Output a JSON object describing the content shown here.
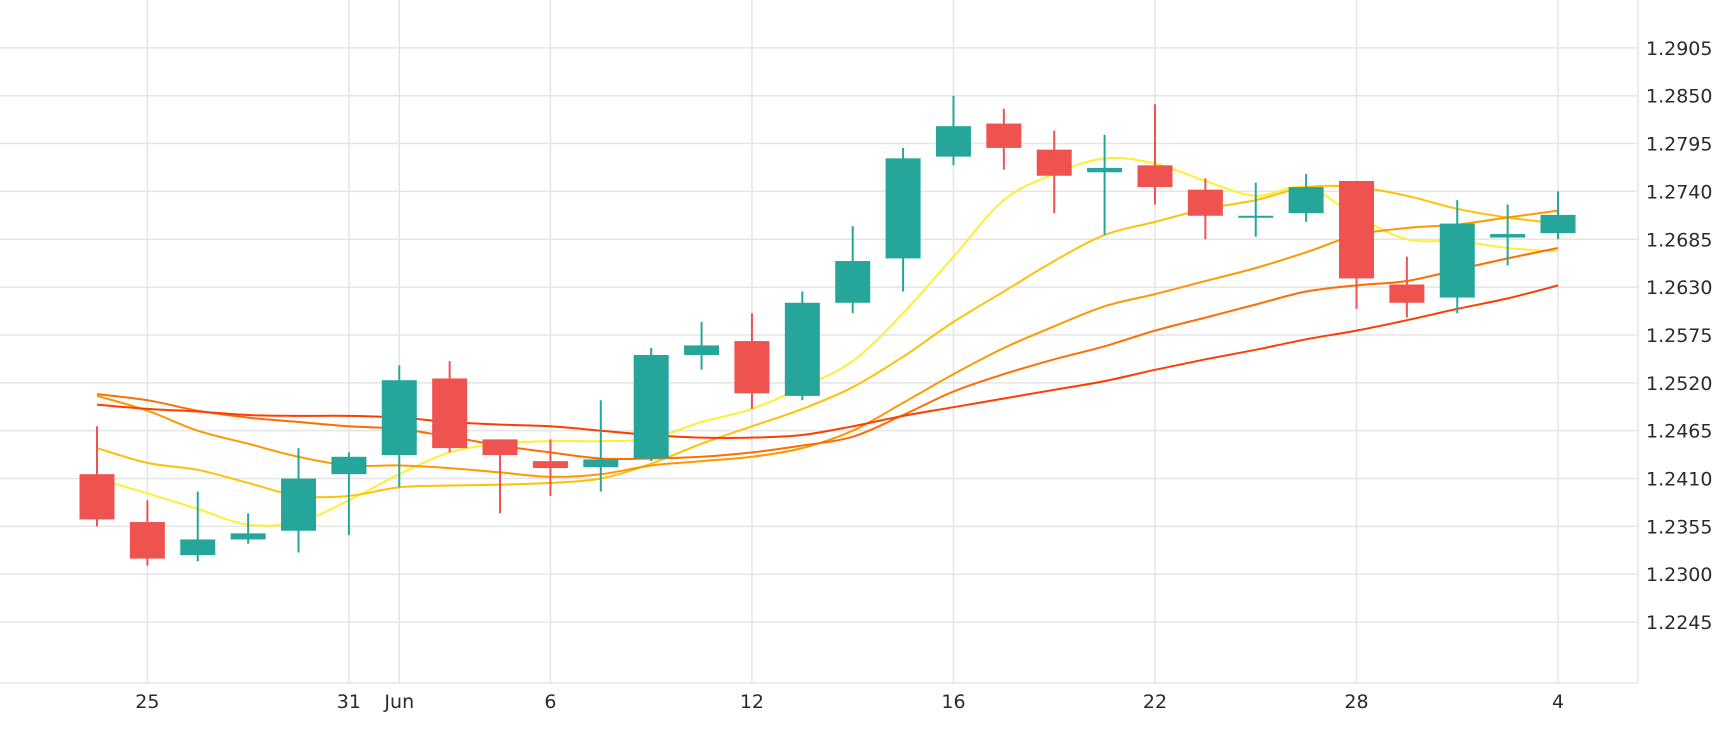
{
  "chart_data": {
    "type": "candlestick",
    "y_axis": {
      "position": "right",
      "ticks": [
        1.2245,
        1.23,
        1.2355,
        1.241,
        1.2465,
        1.252,
        1.2575,
        1.263,
        1.2685,
        1.274,
        1.2795,
        1.285,
        1.2905
      ],
      "tick_labels": [
        "1.2245",
        "1.2300",
        "1.2355",
        "1.2410",
        "1.2465",
        "1.2520",
        "1.2575",
        "1.2630",
        "1.2685",
        "1.2740",
        "1.2795",
        "1.2850",
        "1.2905"
      ],
      "range": [
        1.2175,
        1.296
      ]
    },
    "x_axis": {
      "tick_labels": [
        {
          "index": 1,
          "label": "25"
        },
        {
          "index": 5,
          "label": "31"
        },
        {
          "index": 6,
          "label": "Jun"
        },
        {
          "index": 9,
          "label": "6"
        },
        {
          "index": 13,
          "label": "12"
        },
        {
          "index": 17,
          "label": "16"
        },
        {
          "index": 21,
          "label": "22"
        },
        {
          "index": 25,
          "label": "28"
        },
        {
          "index": 29,
          "label": "4"
        }
      ]
    },
    "grid": true,
    "colors": {
      "up": "#26a69a",
      "down": "#ef5350",
      "ma_colors": [
        "#ffee33",
        "#ffc107",
        "#ff9800",
        "#ff6d00",
        "#ff3d00"
      ]
    },
    "candles": [
      {
        "o": 1.2415,
        "h": 1.247,
        "l": 1.2355,
        "c": 1.2363
      },
      {
        "o": 1.236,
        "h": 1.2385,
        "l": 1.231,
        "c": 1.2318
      },
      {
        "o": 1.2322,
        "h": 1.2395,
        "l": 1.2315,
        "c": 1.234
      },
      {
        "o": 1.234,
        "h": 1.237,
        "l": 1.2335,
        "c": 1.2347
      },
      {
        "o": 1.235,
        "h": 1.2445,
        "l": 1.2325,
        "c": 1.241
      },
      {
        "o": 1.2415,
        "h": 1.244,
        "l": 1.2345,
        "c": 1.2435
      },
      {
        "o": 1.2437,
        "h": 1.254,
        "l": 1.24,
        "c": 1.2523
      },
      {
        "o": 1.2525,
        "h": 1.2545,
        "l": 1.244,
        "c": 1.2445
      },
      {
        "o": 1.2455,
        "h": 1.2455,
        "l": 1.237,
        "c": 1.2437
      },
      {
        "o": 1.243,
        "h": 1.2455,
        "l": 1.239,
        "c": 1.2422
      },
      {
        "o": 1.2423,
        "h": 1.25,
        "l": 1.2395,
        "c": 1.2432
      },
      {
        "o": 1.2433,
        "h": 1.256,
        "l": 1.243,
        "c": 1.2552
      },
      {
        "o": 1.2552,
        "h": 1.259,
        "l": 1.2535,
        "c": 1.2563
      },
      {
        "o": 1.2568,
        "h": 1.26,
        "l": 1.249,
        "c": 1.2508
      },
      {
        "o": 1.2505,
        "h": 1.2625,
        "l": 1.25,
        "c": 1.2612
      },
      {
        "o": 1.2612,
        "h": 1.27,
        "l": 1.26,
        "c": 1.266
      },
      {
        "o": 1.2663,
        "h": 1.279,
        "l": 1.2625,
        "c": 1.2778
      },
      {
        "o": 1.278,
        "h": 1.285,
        "l": 1.277,
        "c": 1.2815
      },
      {
        "o": 1.2818,
        "h": 1.2835,
        "l": 1.2765,
        "c": 1.279
      },
      {
        "o": 1.2788,
        "h": 1.281,
        "l": 1.2715,
        "c": 1.2758
      },
      {
        "o": 1.2762,
        "h": 1.2805,
        "l": 1.269,
        "c": 1.2767
      },
      {
        "o": 1.277,
        "h": 1.284,
        "l": 1.2725,
        "c": 1.2745
      },
      {
        "o": 1.2742,
        "h": 1.2755,
        "l": 1.2685,
        "c": 1.2712
      },
      {
        "o": 1.271,
        "h": 1.275,
        "l": 1.2688,
        "c": 1.2712
      },
      {
        "o": 1.2715,
        "h": 1.276,
        "l": 1.2705,
        "c": 1.2745
      },
      {
        "o": 1.2752,
        "h": 1.2752,
        "l": 1.2605,
        "c": 1.264
      },
      {
        "o": 1.2633,
        "h": 1.2665,
        "l": 1.2595,
        "c": 1.2612
      },
      {
        "o": 1.2618,
        "h": 1.273,
        "l": 1.26,
        "c": 1.2703
      },
      {
        "o": 1.2687,
        "h": 1.2725,
        "l": 1.2655,
        "c": 1.2691
      },
      {
        "o": 1.2692,
        "h": 1.274,
        "l": 1.2685,
        "c": 1.2713
      }
    ],
    "moving_averages": [
      {
        "color": "#ffee33",
        "values": [
          1.241,
          1.2393,
          1.2375,
          1.2357,
          1.236,
          1.2385,
          1.2415,
          1.244,
          1.245,
          1.2453,
          1.2453,
          1.2456,
          1.2475,
          1.249,
          1.2515,
          1.2545,
          1.26,
          1.2665,
          1.273,
          1.276,
          1.2778,
          1.2772,
          1.2752,
          1.2735,
          1.2745,
          1.2712,
          1.2685,
          1.2683,
          1.2675,
          1.2671
        ]
      },
      {
        "color": "#ffc107",
        "values": [
          1.2445,
          1.2428,
          1.242,
          1.2405,
          1.239,
          1.239,
          1.24,
          1.2402,
          1.2403,
          1.2405,
          1.241,
          1.2427,
          1.245,
          1.247,
          1.249,
          1.2515,
          1.255,
          1.259,
          1.2625,
          1.266,
          1.269,
          1.2705,
          1.272,
          1.273,
          1.2745,
          1.2745,
          1.2735,
          1.272,
          1.271,
          1.2703
        ]
      },
      {
        "color": "#ff9800",
        "values": [
          1.2505,
          1.2488,
          1.2465,
          1.245,
          1.2435,
          1.2425,
          1.2425,
          1.2422,
          1.2417,
          1.2412,
          1.2415,
          1.2425,
          1.243,
          1.2435,
          1.2445,
          1.2465,
          1.2497,
          1.253,
          1.256,
          1.2585,
          1.2608,
          1.2622,
          1.2637,
          1.2652,
          1.267,
          1.269,
          1.2698,
          1.2702,
          1.271,
          1.2718
        ]
      },
      {
        "color": "#ff6d00",
        "values": [
          1.2507,
          1.25,
          1.2488,
          1.248,
          1.2475,
          1.247,
          1.2467,
          1.2458,
          1.2448,
          1.244,
          1.2433,
          1.2433,
          1.2435,
          1.244,
          1.2448,
          1.2458,
          1.2483,
          1.251,
          1.253,
          1.2547,
          1.2562,
          1.258,
          1.2595,
          1.261,
          1.2625,
          1.2632,
          1.2637,
          1.265,
          1.2663,
          1.2675
        ]
      },
      {
        "color": "#ff3d00",
        "values": [
          1.2495,
          1.249,
          1.2487,
          1.2483,
          1.2482,
          1.2482,
          1.248,
          1.2475,
          1.2472,
          1.247,
          1.2465,
          1.246,
          1.2457,
          1.2457,
          1.246,
          1.247,
          1.2482,
          1.2492,
          1.2502,
          1.2512,
          1.2522,
          1.2535,
          1.2547,
          1.2558,
          1.257,
          1.258,
          1.2592,
          1.2605,
          1.2617,
          1.2632
        ]
      }
    ]
  }
}
